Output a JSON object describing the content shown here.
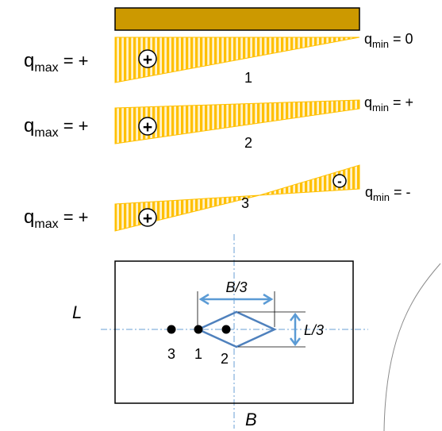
{
  "colors": {
    "footing_fill": "#CC9900",
    "footing_stroke": "#000000",
    "hatch_yellow": "#FFC000",
    "hatch_gap": "#FFF2CC",
    "kern_blue": "#4F81BD",
    "dim_blue": "#5B9BD5",
    "axis_blue": "#6A9FD4",
    "text": "#000000"
  },
  "pressure_diagrams": [
    {
      "number": "1",
      "qmax": {
        "q": "q",
        "sub": "max",
        "rest": " = +"
      },
      "qmin": {
        "q": "q",
        "sub": "min",
        "rest": " = 0"
      },
      "sign_left": "+",
      "sign_right": ""
    },
    {
      "number": "2",
      "qmax": {
        "q": "q",
        "sub": "max",
        "rest": " = +"
      },
      "qmin": {
        "q": "q",
        "sub": "min",
        "rest": " = +"
      },
      "sign_left": "+",
      "sign_right": ""
    },
    {
      "number": "3",
      "qmax": {
        "q": "q",
        "sub": "max",
        "rest": " = +"
      },
      "qmin": {
        "q": "q",
        "sub": "min",
        "rest": " = -"
      },
      "sign_left": "+",
      "sign_right": "-"
    }
  ],
  "plan": {
    "label_L": "L",
    "label_B": "B",
    "dim_B3": "B/3",
    "dim_L3": "L/3",
    "points": [
      "3",
      "1",
      "2"
    ]
  }
}
